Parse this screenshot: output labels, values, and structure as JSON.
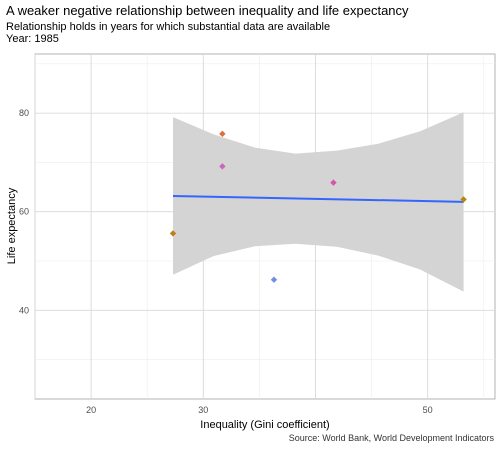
{
  "chart_data": {
    "type": "scatter",
    "title": "A weaker negative relationship between inequality and life expectancy",
    "subtitle": "Relationship holds in years for which substantial data are available",
    "year_label": "Year: 1985",
    "xlabel": "Inequality (Gini coefficient)",
    "ylabel": "Life expectancy",
    "caption": "Source: World Bank, World Development Indicators",
    "xlim": [
      15,
      56
    ],
    "ylim": [
      22,
      92
    ],
    "x_ticks": [
      20,
      30,
      40,
      50
    ],
    "x_tick_labels": [
      "20",
      "30",
      "",
      "50"
    ],
    "y_ticks": [
      40,
      60,
      80
    ],
    "grid": true,
    "colors": {
      "panel_background": "#ffffff",
      "panel_border": "#b3b3b3",
      "grid_major": "#d9d9d9",
      "grid_minor": "#ededed",
      "smooth_line": "#3366ff",
      "confidence_band": "#d4d4d4"
    },
    "points": [
      {
        "x": 27.3,
        "y": 55.6,
        "color": "#c07f1a"
      },
      {
        "x": 31.7,
        "y": 75.8,
        "color": "#dd6f39"
      },
      {
        "x": 31.7,
        "y": 69.2,
        "color": "#cc66bb"
      },
      {
        "x": 41.6,
        "y": 65.9,
        "color": "#d855a8"
      },
      {
        "x": 36.3,
        "y": 46.2,
        "color": "#6f8fe0"
      },
      {
        "x": 53.2,
        "y": 62.5,
        "color": "#b9860b"
      }
    ],
    "smooth": {
      "x": [
        27.3,
        53.2
      ],
      "y": [
        63.2,
        62.0
      ],
      "band_lower": [
        [
          27.3,
          47.2
        ],
        [
          30.9,
          51.0
        ],
        [
          34.6,
          53.0
        ],
        [
          38.2,
          53.5
        ],
        [
          41.9,
          52.9
        ],
        [
          45.6,
          51.1
        ],
        [
          49.3,
          48.3
        ],
        [
          53.2,
          43.8
        ]
      ],
      "band_upper": [
        [
          27.3,
          79.2
        ],
        [
          30.9,
          75.7
        ],
        [
          34.6,
          73.0
        ],
        [
          38.2,
          71.8
        ],
        [
          41.9,
          72.4
        ],
        [
          45.6,
          73.8
        ],
        [
          49.3,
          76.3
        ],
        [
          53.2,
          80.2
        ]
      ]
    }
  }
}
